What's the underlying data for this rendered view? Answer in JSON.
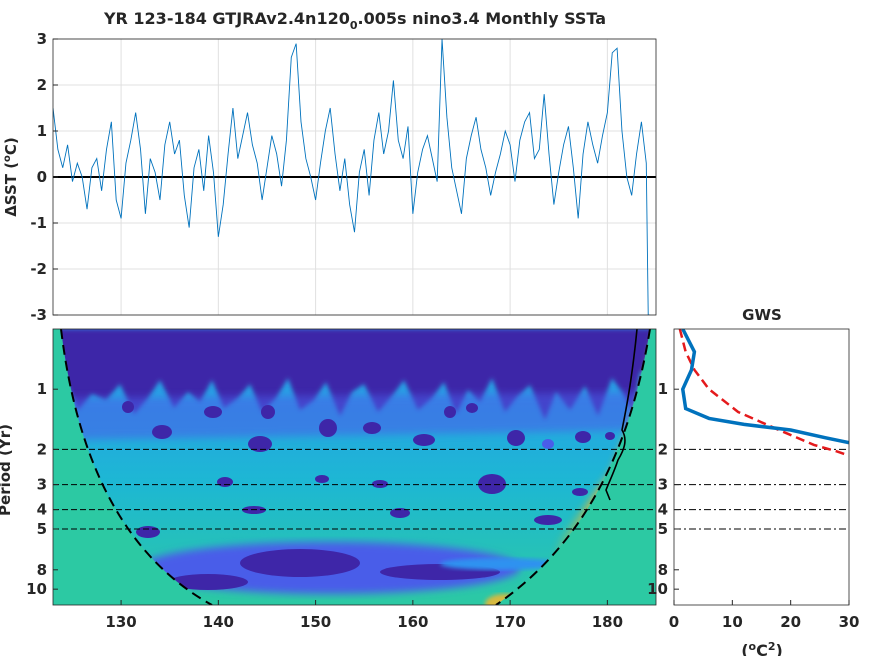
{
  "chart_data": [
    {
      "type": "line",
      "title": {
        "pre": "YR 123-184 GTJRAv2.4n120",
        "sub": "0",
        "post": ".005s nino3.4 Monthly SSTa"
      },
      "ylabel": {
        "pre": "ΔSST (",
        "sup": "o",
        "post": "C)"
      },
      "xlim": [
        123,
        185
      ],
      "ylim": [
        -3,
        3
      ],
      "yticks": [
        "-3",
        "-2",
        "-1",
        "0",
        "1",
        "2",
        "3"
      ],
      "xgrid": [
        130,
        140,
        150,
        160,
        170,
        180
      ],
      "grid": true,
      "series": [
        {
          "color": "#0072BD",
          "x": [
            123,
            123.5,
            124,
            124.5,
            125,
            125.5,
            126,
            126.5,
            127,
            127.5,
            128,
            128.5,
            129,
            129.5,
            130,
            130.5,
            131,
            131.5,
            132,
            132.5,
            133,
            133.5,
            134,
            134.5,
            135,
            135.5,
            136,
            136.5,
            137,
            137.5,
            138,
            138.5,
            139,
            139.5,
            140,
            140.5,
            141,
            141.5,
            142,
            142.5,
            143,
            143.5,
            144,
            144.5,
            145,
            145.5,
            146,
            146.5,
            147,
            147.5,
            148,
            148.5,
            149,
            149.5,
            150,
            150.5,
            151,
            151.5,
            152,
            152.5,
            153,
            153.5,
            154,
            154.5,
            155,
            155.5,
            156,
            156.5,
            157,
            157.5,
            158,
            158.5,
            159,
            159.5,
            160,
            160.5,
            161,
            161.5,
            162,
            162.5,
            163,
            163.5,
            164,
            164.5,
            165,
            165.5,
            166,
            166.5,
            167,
            167.5,
            168,
            168.5,
            169,
            169.5,
            170,
            170.5,
            171,
            171.5,
            172,
            172.5,
            173,
            173.5,
            174,
            174.5,
            175,
            175.5,
            176,
            176.5,
            177,
            177.5,
            178,
            178.5,
            179,
            179.5,
            180,
            180.5,
            181,
            181.5,
            182,
            182.5,
            183,
            183.5,
            184,
            184.2,
            184.4
          ],
          "y": [
            1.5,
            0.6,
            0.2,
            0.7,
            -0.1,
            0.3,
            0.0,
            -0.7,
            0.2,
            0.4,
            -0.3,
            0.6,
            1.2,
            -0.5,
            -0.9,
            0.3,
            0.8,
            1.4,
            0.6,
            -0.8,
            0.4,
            0.1,
            -0.5,
            0.7,
            1.2,
            0.5,
            0.8,
            -0.4,
            -1.1,
            0.2,
            0.6,
            -0.3,
            0.9,
            0.1,
            -1.3,
            -0.6,
            0.5,
            1.5,
            0.4,
            0.9,
            1.4,
            0.7,
            0.3,
            -0.5,
            0.2,
            0.9,
            0.5,
            -0.2,
            0.8,
            2.6,
            2.9,
            1.2,
            0.4,
            0.0,
            -0.5,
            0.3,
            1.0,
            1.5,
            0.5,
            -0.3,
            0.4,
            -0.6,
            -1.2,
            0.1,
            0.6,
            -0.4,
            0.8,
            1.4,
            0.5,
            1.0,
            2.1,
            0.8,
            0.4,
            1.1,
            -0.8,
            0.1,
            0.6,
            0.9,
            0.4,
            -0.1,
            3.0,
            1.3,
            0.2,
            -0.3,
            -0.8,
            0.4,
            0.9,
            1.3,
            0.6,
            0.2,
            -0.4,
            0.1,
            0.5,
            1.0,
            0.7,
            -0.1,
            0.8,
            1.2,
            1.4,
            0.4,
            0.6,
            1.8,
            0.5,
            -0.6,
            0.1,
            0.7,
            1.1,
            0.2,
            -0.9,
            0.5,
            1.2,
            0.7,
            0.3,
            0.9,
            1.4,
            2.7,
            2.8,
            1.0,
            0.0,
            -0.4,
            0.5,
            1.2,
            0.3,
            -3.0,
            -3.0
          ]
        },
        {
          "color": "#000000",
          "x": [
            123,
            185
          ],
          "y": [
            0,
            0
          ]
        }
      ]
    },
    {
      "type": "heatmap",
      "ylabel": "Period (Yr)",
      "xlim": [
        123,
        185
      ],
      "xticks": [
        "130",
        "140",
        "150",
        "160",
        "170",
        "180"
      ],
      "yticks": [
        "1",
        "2",
        "3",
        "4",
        "5",
        "8",
        "10"
      ],
      "period_range": [
        0.5,
        12
      ],
      "dashed_periods": [
        2,
        3,
        4,
        5
      ],
      "colormap": [
        "#3E26A8",
        "#4A5DE9",
        "#2F92F0",
        "#1DB7D4",
        "#2CC9A3",
        "#85CC5B",
        "#D6BA3F",
        "#F9D426"
      ]
    },
    {
      "type": "line",
      "title": "GWS",
      "xlabel": {
        "pre": "(",
        "sup1": "o",
        "mid": "C",
        "sup2": "2",
        "post": ")"
      },
      "xticks": [
        "0",
        "10",
        "20",
        "30"
      ],
      "xlim": [
        0,
        30
      ],
      "yticks": [
        "1",
        "2",
        "3",
        "4",
        "5",
        "8",
        "10"
      ],
      "dashed_periods": [
        2,
        3,
        4,
        5
      ],
      "series": [
        {
          "color": "#0072BD",
          "x": [
            1.5,
            3.5,
            3.0,
            1.5,
            2.0,
            6.0,
            12.0,
            20.0,
            26.0,
            30.0
          ],
          "y": [
            0.5,
            0.65,
            0.8,
            1.0,
            1.25,
            1.4,
            1.5,
            1.6,
            1.75,
            1.85
          ]
        },
        {
          "color": "#E41A1C",
          "x": [
            1.0,
            2.0,
            3.5,
            6.0,
            11.0,
            18.0,
            24.0,
            28.0,
            30.0
          ],
          "y": [
            0.5,
            0.65,
            0.8,
            1.0,
            1.3,
            1.6,
            1.9,
            2.05,
            2.15
          ]
        }
      ]
    }
  ]
}
